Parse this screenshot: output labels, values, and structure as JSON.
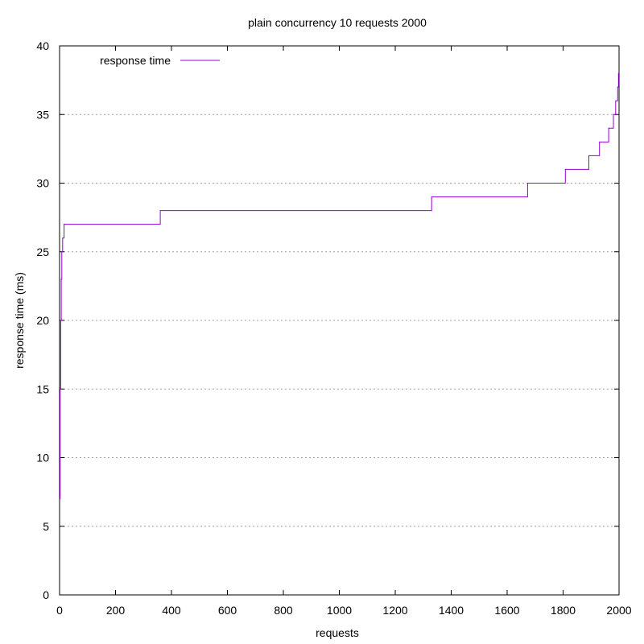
{
  "chart_data": {
    "type": "line",
    "title": "plain concurrency 10 requests 2000",
    "xlabel": "requests",
    "ylabel": "response time (ms)",
    "xlim": [
      0,
      2000
    ],
    "ylim": [
      0,
      40
    ],
    "xticks": [
      0,
      200,
      400,
      600,
      800,
      1000,
      1200,
      1400,
      1600,
      1800,
      2000
    ],
    "yticks": [
      0,
      5,
      10,
      15,
      20,
      25,
      30,
      35,
      40
    ],
    "grid": "horizontal dotted",
    "legend": {
      "position": "top-left"
    },
    "series": [
      {
        "name": "response time",
        "color": "#9400d3",
        "step": true,
        "x": [
          0,
          2,
          4,
          6,
          8,
          11,
          16,
          360,
          1330,
          1673,
          1808,
          1892,
          1930,
          1963,
          1980,
          1988,
          1995,
          1998
        ],
        "y": [
          7,
          15,
          20,
          23,
          25,
          26,
          27,
          28,
          29,
          30,
          31,
          32,
          33,
          34,
          35,
          36,
          37,
          38
        ]
      }
    ]
  }
}
